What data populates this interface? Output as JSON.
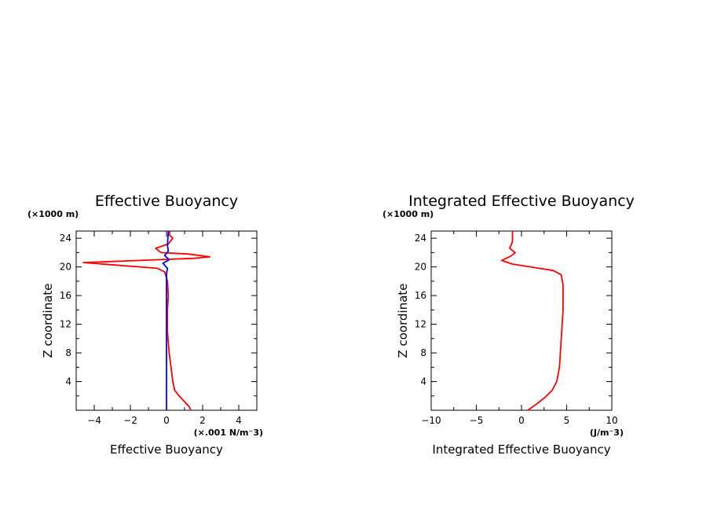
{
  "chart_data": [
    {
      "type": "line",
      "title": "Effective Buoyancy",
      "xlabel": "Effective Buoyancy",
      "x_units": "(×.001 N/m⁻3)",
      "ylabel": "Z coordinate",
      "y_units": "(×1000 m)",
      "xlim": [
        -5,
        5
      ],
      "ylim": [
        0,
        25
      ],
      "xticks": [
        -4,
        -2,
        0,
        2,
        4
      ],
      "yticks": [
        4,
        8,
        12,
        16,
        20,
        24
      ],
      "xtick_labels": [
        "−4",
        "−2",
        "0",
        "2",
        "4"
      ],
      "ytick_labels": [
        "4",
        "8",
        "12",
        "16",
        "20",
        "24"
      ],
      "grid": false,
      "series": [
        {
          "color": "#ff0000",
          "points": [
            [
              1.35,
              0
            ],
            [
              1.25,
              0.5
            ],
            [
              1.0,
              1.2
            ],
            [
              0.7,
              2.0
            ],
            [
              0.45,
              2.8
            ],
            [
              0.35,
              4
            ],
            [
              0.25,
              6
            ],
            [
              0.15,
              8
            ],
            [
              0.05,
              11
            ],
            [
              0.05,
              14
            ],
            [
              0.1,
              16
            ],
            [
              0.05,
              18
            ],
            [
              -0.1,
              19.3
            ],
            [
              -0.5,
              19.8
            ],
            [
              -2.5,
              20.2
            ],
            [
              -4.6,
              20.6
            ],
            [
              -1.5,
              20.9
            ],
            [
              1.5,
              21.2
            ],
            [
              2.4,
              21.4
            ],
            [
              1.2,
              21.8
            ],
            [
              -0.3,
              22
            ],
            [
              -0.6,
              22.6
            ],
            [
              0.1,
              23.2
            ],
            [
              0.35,
              24
            ],
            [
              0.15,
              24.5
            ],
            [
              0.2,
              25
            ]
          ]
        },
        {
          "color": "#0000ff",
          "points": [
            [
              0,
              0
            ],
            [
              0,
              19.0
            ],
            [
              0.05,
              19.8
            ],
            [
              -0.2,
              20.5
            ],
            [
              0.15,
              21.0
            ],
            [
              -0.1,
              21.6
            ],
            [
              0.1,
              22.2
            ],
            [
              0.05,
              23.0
            ],
            [
              0.1,
              25
            ]
          ]
        }
      ]
    },
    {
      "type": "line",
      "title": "Integrated Effective Buoyancy",
      "xlabel": "Integrated Effective Buoyancy",
      "x_units": "(J/m⁻3)",
      "ylabel": "Z coordinate",
      "y_units": "(×1000 m)",
      "xlim": [
        -10,
        10
      ],
      "ylim": [
        0,
        25
      ],
      "xticks": [
        -10,
        -5,
        0,
        5,
        10
      ],
      "yticks": [
        4,
        8,
        12,
        16,
        20,
        24
      ],
      "xtick_labels": [
        "−10",
        "−5",
        "0",
        "5",
        "10"
      ],
      "ytick_labels": [
        "4",
        "8",
        "12",
        "16",
        "20",
        "24"
      ],
      "grid": false,
      "series": [
        {
          "color": "#ff0000",
          "points": [
            [
              0.7,
              0
            ],
            [
              1.6,
              0.8
            ],
            [
              2.6,
              1.8
            ],
            [
              3.4,
              2.8
            ],
            [
              3.9,
              4
            ],
            [
              4.2,
              6
            ],
            [
              4.3,
              8
            ],
            [
              4.4,
              10
            ],
            [
              4.5,
              12
            ],
            [
              4.6,
              14
            ],
            [
              4.6,
              16
            ],
            [
              4.6,
              17.5
            ],
            [
              4.4,
              18.9
            ],
            [
              3.5,
              19.5
            ],
            [
              1.0,
              20.0
            ],
            [
              -1.0,
              20.4
            ],
            [
              -2.2,
              20.9
            ],
            [
              -1.2,
              21.5
            ],
            [
              -0.7,
              22.0
            ],
            [
              -1.3,
              22.6
            ],
            [
              -1.0,
              23.5
            ],
            [
              -1.0,
              25
            ]
          ]
        }
      ]
    }
  ]
}
